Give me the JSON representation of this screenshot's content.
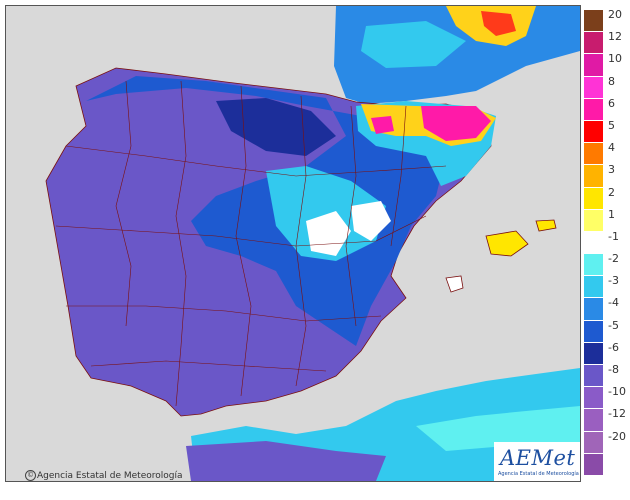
{
  "map": {
    "credit": "Agencia Estatal de Meteorología",
    "copyright_symbol": "©",
    "logo_word": "AEMet",
    "logo_sub": "Agencia Estatal de Meteorología"
  },
  "legend": {
    "colors": [
      "#7b3f1b",
      "#c81c6e",
      "#e01aa5",
      "#ff33d6",
      "#ff1aa8",
      "#ff0000",
      "#ff7a00",
      "#ffb300",
      "#ffe600",
      "#ffff66",
      "#ffffff",
      "#5ff0f0",
      "#33c9ee",
      "#2a8ae6",
      "#1e5ad0",
      "#1c2e9a",
      "#6a57c8",
      "#8a5bc8",
      "#9a5fc0",
      "#a065b8",
      "#8a4ba8"
    ],
    "labels": [
      "20",
      "12",
      "10",
      "8",
      "6",
      "5",
      "4",
      "3",
      "2",
      "1",
      "-1",
      "-2",
      "-3",
      "-4",
      "-5",
      "-6",
      "-8",
      "-10",
      "-12",
      "-20"
    ]
  }
}
